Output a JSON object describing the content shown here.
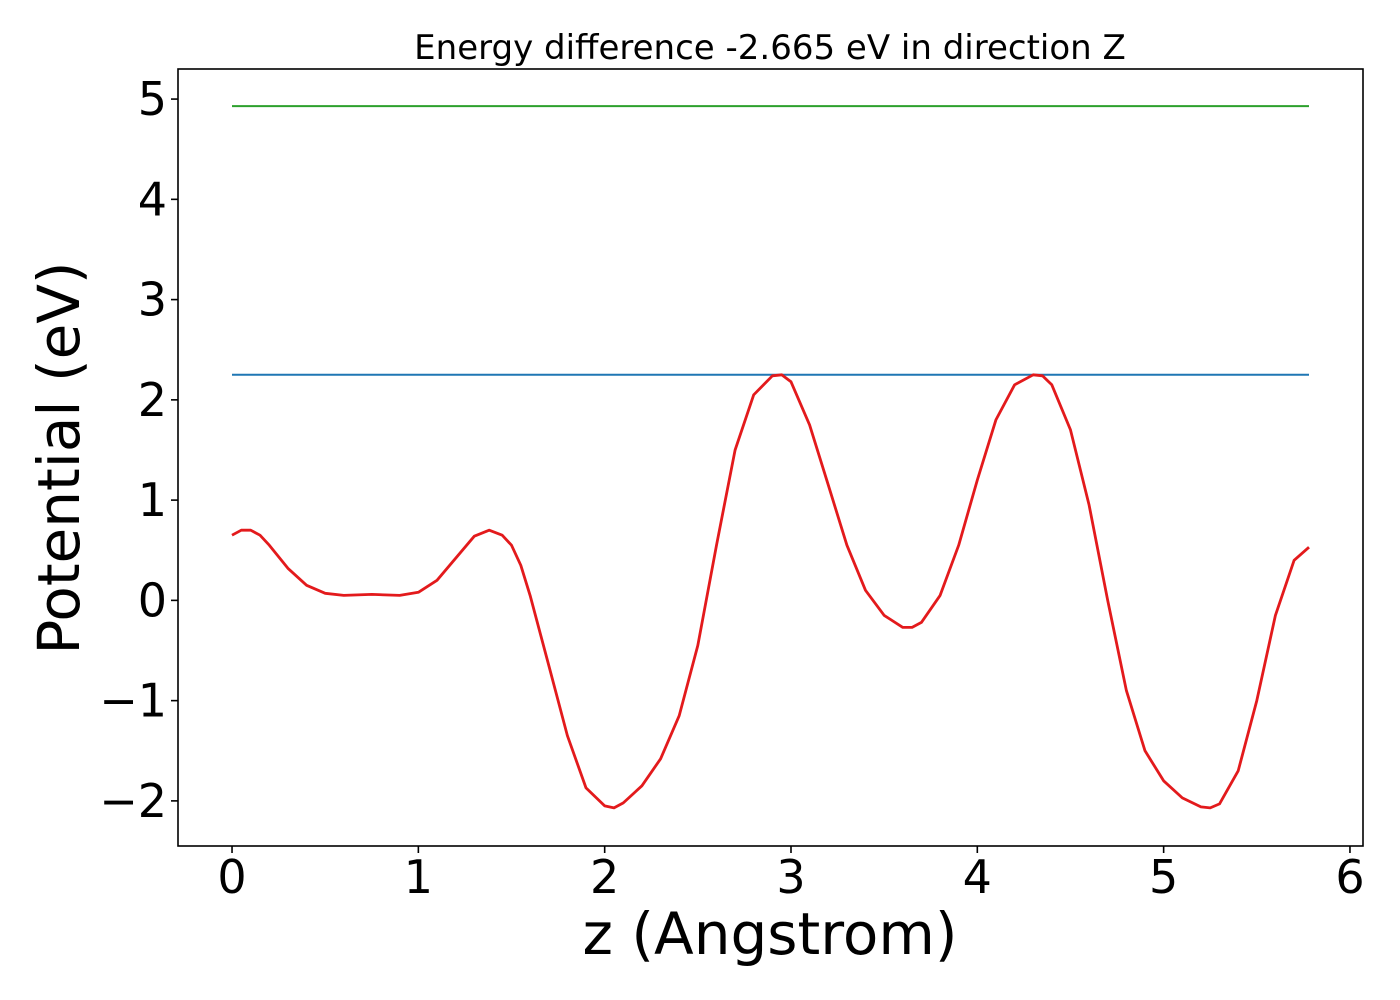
{
  "chart_data": {
    "type": "line",
    "title": "Energy difference -2.665 eV in direction Z",
    "xlabel": "z (Angstrom)",
    "ylabel": "Potential (eV)",
    "xlim": [
      -0.29,
      6.07
    ],
    "ylim": [
      -2.45,
      5.3
    ],
    "xticks": [
      0,
      1,
      2,
      3,
      4,
      5,
      6
    ],
    "yticks": [
      -2,
      -1,
      0,
      1,
      2,
      3,
      4,
      5
    ],
    "xtick_labels": [
      "0",
      "1",
      "2",
      "3",
      "4",
      "5",
      "6"
    ],
    "ytick_labels": [
      "−2",
      "−1",
      "0",
      "1",
      "2",
      "3",
      "4",
      "5"
    ],
    "grid": false,
    "series": [
      {
        "color": "#2ca02c",
        "x": [
          0,
          5.78
        ],
        "y": [
          4.93,
          4.93
        ]
      },
      {
        "color": "#1f77b4",
        "x": [
          0,
          5.78
        ],
        "y": [
          2.25,
          2.25
        ]
      },
      {
        "color": "#e31a1c",
        "x": [
          0,
          0.05,
          0.1,
          0.15,
          0.2,
          0.3,
          0.4,
          0.5,
          0.6,
          0.75,
          0.9,
          1.0,
          1.1,
          1.2,
          1.3,
          1.38,
          1.45,
          1.5,
          1.55,
          1.6,
          1.7,
          1.8,
          1.9,
          2.0,
          2.05,
          2.1,
          2.2,
          2.3,
          2.4,
          2.5,
          2.6,
          2.7,
          2.8,
          2.9,
          2.95,
          3.0,
          3.1,
          3.2,
          3.3,
          3.4,
          3.5,
          3.6,
          3.65,
          3.7,
          3.8,
          3.9,
          4.0,
          4.1,
          4.2,
          4.3,
          4.35,
          4.4,
          4.5,
          4.6,
          4.7,
          4.8,
          4.9,
          5.0,
          5.1,
          5.2,
          5.25,
          5.3,
          5.4,
          5.5,
          5.6,
          5.7,
          5.78
        ],
        "y": [
          0.65,
          0.7,
          0.7,
          0.65,
          0.55,
          0.32,
          0.15,
          0.07,
          0.05,
          0.06,
          0.05,
          0.08,
          0.2,
          0.42,
          0.64,
          0.7,
          0.65,
          0.55,
          0.35,
          0.05,
          -0.65,
          -1.35,
          -1.87,
          -2.05,
          -2.07,
          -2.02,
          -1.85,
          -1.58,
          -1.15,
          -0.45,
          0.55,
          1.5,
          2.05,
          2.24,
          2.25,
          2.18,
          1.75,
          1.15,
          0.55,
          0.1,
          -0.15,
          -0.27,
          -0.27,
          -0.22,
          0.05,
          0.55,
          1.2,
          1.8,
          2.15,
          2.25,
          2.24,
          2.15,
          1.7,
          0.95,
          0.0,
          -0.9,
          -1.5,
          -1.8,
          -1.97,
          -2.06,
          -2.07,
          -2.03,
          -1.7,
          -1.0,
          -0.15,
          0.4,
          0.53
        ]
      }
    ]
  }
}
